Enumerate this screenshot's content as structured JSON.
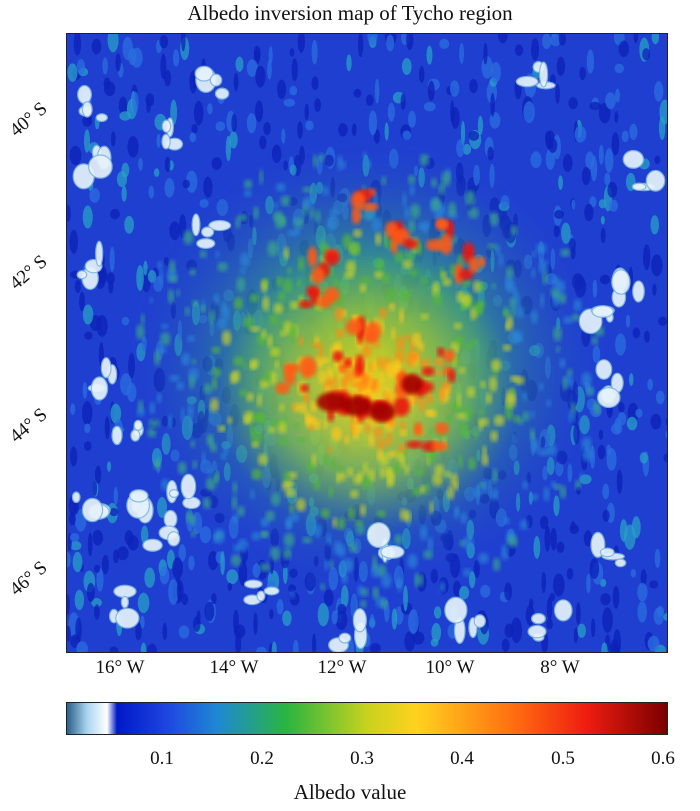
{
  "title": "Albedo inversion map of Tycho region",
  "latitude_labels": [
    "40° S",
    "42° S",
    "44° S",
    "46° S"
  ],
  "longitude_labels": [
    "16° W",
    "14° W",
    "12° W",
    "10° W",
    "8° W"
  ],
  "colorbar": {
    "title": "Albedo value",
    "ticks": [
      "0.1",
      "0.2",
      "0.3",
      "0.4",
      "0.5",
      "0.6"
    ],
    "range": [
      0.0,
      0.6
    ],
    "stops": [
      {
        "v": 0.0,
        "c": "#2a5f88"
      },
      {
        "v": 0.02,
        "c": "#a9d4ee"
      },
      {
        "v": 0.04,
        "c": "#ffffff"
      },
      {
        "v": 0.05,
        "c": "#0018c8"
      },
      {
        "v": 0.1,
        "c": "#1f45e0"
      },
      {
        "v": 0.15,
        "c": "#1e88d4"
      },
      {
        "v": 0.22,
        "c": "#2ab540"
      },
      {
        "v": 0.3,
        "c": "#c8d21e"
      },
      {
        "v": 0.35,
        "c": "#ffd21e"
      },
      {
        "v": 0.45,
        "c": "#ff6a10"
      },
      {
        "v": 0.52,
        "c": "#ee1c10"
      },
      {
        "v": 0.6,
        "c": "#7a0000"
      }
    ]
  },
  "colors": {
    "background": "#1f3fd0",
    "high_albedo_core": "#b00000",
    "bright_patch": "#e6f2fb"
  }
}
